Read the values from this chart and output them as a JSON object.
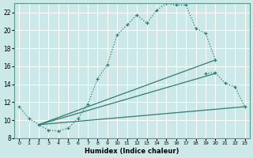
{
  "xlabel": "Humidex (Indice chaleur)",
  "xlim": [
    -0.5,
    23.5
  ],
  "ylim": [
    8,
    23
  ],
  "yticks": [
    8,
    10,
    12,
    14,
    16,
    18,
    20,
    22
  ],
  "xticks": [
    0,
    1,
    2,
    3,
    4,
    5,
    6,
    7,
    8,
    9,
    10,
    11,
    12,
    13,
    14,
    15,
    16,
    17,
    18,
    19,
    20,
    21,
    22,
    23
  ],
  "bg_color": "#cce8e8",
  "grid_color": "#b0d4d4",
  "line_color": "#2e7d6e",
  "main_curve_x": [
    0,
    1,
    2,
    3,
    4,
    5,
    6,
    7,
    8,
    9,
    10,
    11,
    12,
    13,
    14,
    15,
    16,
    17,
    18,
    19,
    20
  ],
  "main_curve_y": [
    11.5,
    10.2,
    9.5,
    8.9,
    8.8,
    9.1,
    10.2,
    11.8,
    14.6,
    16.2,
    19.5,
    20.6,
    21.7,
    20.8,
    22.2,
    23.0,
    22.8,
    22.8,
    20.2,
    19.7,
    16.7
  ],
  "seg2_x": [
    19,
    20,
    21,
    22,
    23
  ],
  "seg2_y": [
    15.2,
    15.3,
    14.1,
    13.7,
    11.5
  ],
  "line1_x": [
    2,
    23
  ],
  "line1_y": [
    9.5,
    11.5
  ],
  "line2_x": [
    2,
    20
  ],
  "line2_y": [
    9.5,
    16.7
  ],
  "line3_x": [
    2,
    20
  ],
  "line3_y": [
    9.5,
    15.2
  ]
}
